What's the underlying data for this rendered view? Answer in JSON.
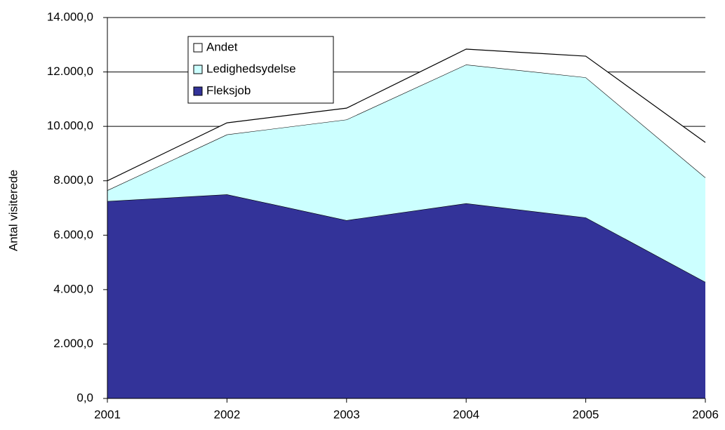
{
  "chart_data": {
    "type": "stacked-area",
    "y_label": "Antal visiterede",
    "categories": [
      "2001",
      "2002",
      "2003",
      "2004",
      "2005",
      "2006"
    ],
    "series": [
      {
        "name": "Fleksjob",
        "color": "#333399",
        "values": [
          7250,
          7500,
          6550,
          7170,
          6650,
          4280
        ]
      },
      {
        "name": "Ledighedsydelse",
        "color": "#ccffff",
        "values": [
          400,
          2200,
          3700,
          5100,
          5150,
          3840
        ]
      },
      {
        "name": "Andet",
        "color": "#ffffff",
        "values": [
          350,
          430,
          420,
          570,
          780,
          1290
        ]
      }
    ],
    "ylim": [
      0,
      14000
    ],
    "yticks": [
      {
        "value": 0,
        "label": "0,0"
      },
      {
        "value": 2000,
        "label": "2.000,0"
      },
      {
        "value": 4000,
        "label": "4.000,0"
      },
      {
        "value": 6000,
        "label": "6.000,0"
      },
      {
        "value": 8000,
        "label": "8.000,0"
      },
      {
        "value": 10000,
        "label": "10.000,0"
      },
      {
        "value": 12000,
        "label": "12.000,0"
      },
      {
        "value": 14000,
        "label": "14.000,0"
      }
    ],
    "grid": true,
    "legend": "top-left"
  }
}
